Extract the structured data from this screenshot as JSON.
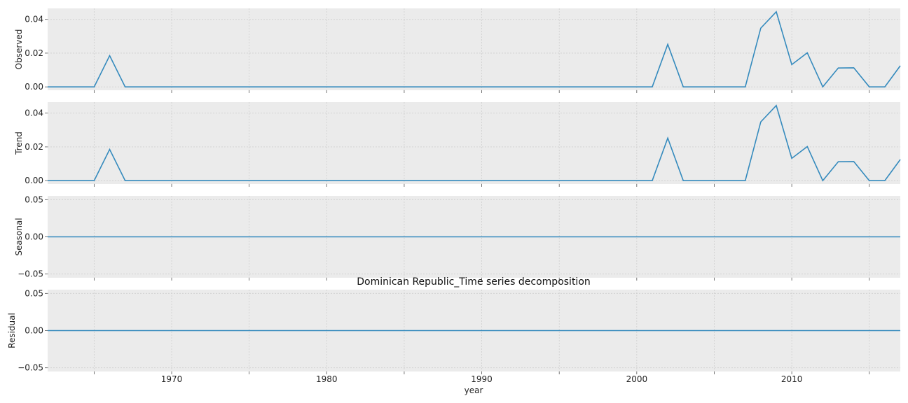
{
  "chart_data": {
    "type": "line",
    "title": "Dominican Republic_Time series decomposition",
    "xlabel": "year",
    "xlim": [
      1962,
      2017
    ],
    "x_ticks": [
      1970,
      1980,
      1990,
      2000,
      2010
    ],
    "x_minor_ticks": [
      1965,
      1975,
      1985,
      1995,
      2005,
      2015
    ],
    "x": [
      1962,
      1963,
      1964,
      1965,
      1966,
      1967,
      1968,
      1969,
      1970,
      1971,
      1972,
      1973,
      1974,
      1975,
      1976,
      1977,
      1978,
      1979,
      1980,
      1981,
      1982,
      1983,
      1984,
      1985,
      1986,
      1987,
      1988,
      1989,
      1990,
      1991,
      1992,
      1993,
      1994,
      1995,
      1996,
      1997,
      1998,
      1999,
      2000,
      2001,
      2002,
      2003,
      2004,
      2005,
      2006,
      2007,
      2008,
      2009,
      2010,
      2011,
      2012,
      2013,
      2014,
      2015,
      2016,
      2017
    ],
    "grid": true,
    "line_color": "#348abd",
    "panels": [
      {
        "ylabel": "Observed",
        "ylim": [
          -0.002,
          0.0465
        ],
        "y_ticks": [
          0.0,
          0.02,
          0.04
        ],
        "y_tick_labels": [
          "0.00",
          "0.02",
          "0.04"
        ],
        "values": [
          0,
          0,
          0,
          0,
          0.0185,
          0,
          0,
          0,
          0,
          0,
          0,
          0,
          0,
          0,
          0,
          0,
          0,
          0,
          0,
          0,
          0,
          0,
          0,
          0,
          0,
          0,
          0,
          0,
          0,
          0,
          0,
          0,
          0,
          0,
          0,
          0,
          0,
          0,
          0,
          0,
          0.0252,
          0,
          0,
          0,
          0,
          0,
          0.0348,
          0.0445,
          0.0132,
          0.0202,
          0,
          0.0112,
          0.0113,
          0,
          0,
          0.0125
        ]
      },
      {
        "ylabel": "Trend",
        "ylim": [
          -0.002,
          0.0465
        ],
        "y_ticks": [
          0.0,
          0.02,
          0.04
        ],
        "y_tick_labels": [
          "0.00",
          "0.02",
          "0.04"
        ],
        "values": [
          0,
          0,
          0,
          0,
          0.0185,
          0,
          0,
          0,
          0,
          0,
          0,
          0,
          0,
          0,
          0,
          0,
          0,
          0,
          0,
          0,
          0,
          0,
          0,
          0,
          0,
          0,
          0,
          0,
          0,
          0,
          0,
          0,
          0,
          0,
          0,
          0,
          0,
          0,
          0,
          0,
          0.0252,
          0,
          0,
          0,
          0,
          0,
          0.0348,
          0.0445,
          0.0132,
          0.0202,
          0,
          0.0112,
          0.0113,
          0,
          0,
          0.0125
        ]
      },
      {
        "ylabel": "Seasonal",
        "ylim": [
          -0.055,
          0.055
        ],
        "y_ticks": [
          -0.05,
          0.0,
          0.05
        ],
        "y_tick_labels": [
          "−0.05",
          "0.00",
          "0.05"
        ],
        "values": [
          0,
          0,
          0,
          0,
          0,
          0,
          0,
          0,
          0,
          0,
          0,
          0,
          0,
          0,
          0,
          0,
          0,
          0,
          0,
          0,
          0,
          0,
          0,
          0,
          0,
          0,
          0,
          0,
          0,
          0,
          0,
          0,
          0,
          0,
          0,
          0,
          0,
          0,
          0,
          0,
          0,
          0,
          0,
          0,
          0,
          0,
          0,
          0,
          0,
          0,
          0,
          0,
          0,
          0,
          0,
          0
        ]
      },
      {
        "ylabel": "Residual",
        "ylim": [
          -0.055,
          0.055
        ],
        "y_ticks": [
          -0.05,
          0.0,
          0.05
        ],
        "y_tick_labels": [
          "−0.05",
          "0.00",
          "0.05"
        ],
        "values": [
          0,
          0,
          0,
          0,
          0,
          0,
          0,
          0,
          0,
          0,
          0,
          0,
          0,
          0,
          0,
          0,
          0,
          0,
          0,
          0,
          0,
          0,
          0,
          0,
          0,
          0,
          0,
          0,
          0,
          0,
          0,
          0,
          0,
          0,
          0,
          0,
          0,
          0,
          0,
          0,
          0,
          0,
          0,
          0,
          0,
          0,
          0,
          0,
          0,
          0,
          0,
          0,
          0,
          0,
          0,
          0
        ]
      }
    ]
  }
}
